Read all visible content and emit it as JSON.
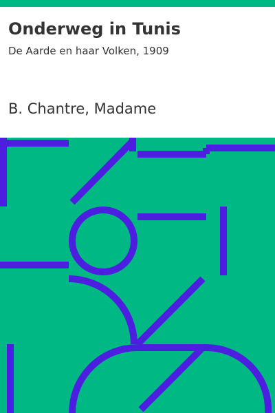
{
  "book": {
    "title": "Onderweg in Tunis",
    "subtitle": "De Aarde en haar Volken, 1909",
    "author": "B. Chantre, Madame"
  },
  "colors": {
    "strip": "#00b884",
    "art_background": "#00b884",
    "art_pattern": "#4b1ee0",
    "text": "#333333",
    "page_background": "#ffffff"
  }
}
